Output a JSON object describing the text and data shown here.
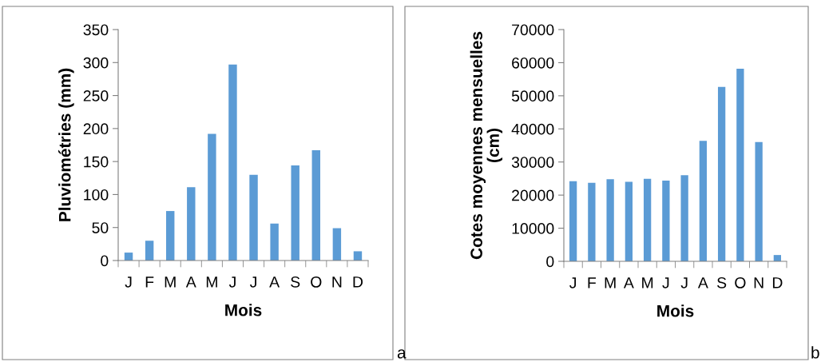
{
  "chart_data": [
    {
      "type": "bar",
      "xlabel": "Mois",
      "ylabel": "Pluviométries (mm)",
      "categories": [
        "J",
        "F",
        "M",
        "A",
        "M",
        "J",
        "J",
        "A",
        "S",
        "O",
        "N",
        "D"
      ],
      "values": [
        12,
        30,
        75,
        111,
        192,
        297,
        130,
        56,
        144,
        167,
        49,
        14
      ],
      "color": "#5b9bd5",
      "ylim": [
        0,
        350
      ],
      "yticks": [
        0,
        50,
        100,
        150,
        200,
        250,
        300,
        350
      ],
      "grid": false,
      "annotations": [
        "a"
      ]
    },
    {
      "type": "bar",
      "xlabel": "Mois",
      "ylabel": "Cotes moyennes mensuelles\n(cm)",
      "categories": [
        "J",
        "F",
        "M",
        "A",
        "M",
        "J",
        "J",
        "A",
        "S",
        "O",
        "N",
        "D"
      ],
      "values": [
        24200,
        23700,
        24800,
        24000,
        24900,
        24400,
        26000,
        36400,
        52700,
        58200,
        36000,
        1900
      ],
      "color": "#5b9bd5",
      "ylim": [
        0,
        70000
      ],
      "yticks": [
        0,
        10000,
        20000,
        30000,
        40000,
        50000,
        60000,
        70000
      ],
      "grid": false,
      "annotations": [
        "b"
      ]
    }
  ]
}
